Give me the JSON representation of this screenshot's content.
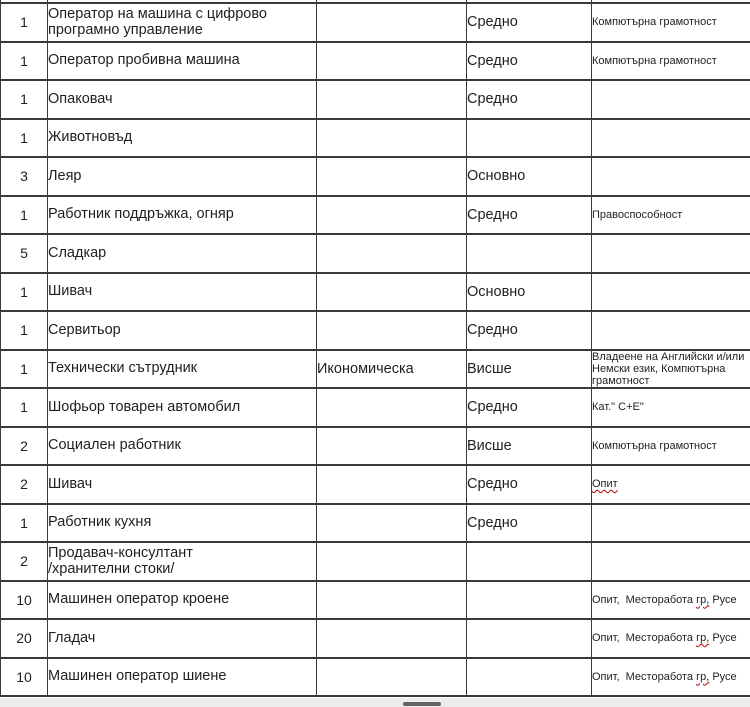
{
  "document": {
    "background": "#ffffff",
    "border_color": "#3a3a3a",
    "text_color": "#1f1f1f",
    "spellcheck_underline_color": "#b40000",
    "footer_strip_color": "#ececec",
    "scroll_artifact_color": "#4c4c4c"
  },
  "table": {
    "columns": [
      "count",
      "position",
      "specialty",
      "education",
      "requirements"
    ],
    "rows": [
      {
        "count": "1",
        "position": "Оператор на машина с цифрово\nпрограмно управление",
        "specialty": "",
        "education": "Средно",
        "requirements": {
          "text": "Компютърна грамотност",
          "wavy": ""
        }
      },
      {
        "count": "1",
        "position": "Оператор пробивна машина",
        "specialty": "",
        "education": "Средно",
        "requirements": {
          "text": "Компютърна грамотност",
          "wavy": ""
        }
      },
      {
        "count": "1",
        "position": "Опаковач",
        "specialty": "",
        "education": "Средно",
        "requirements": {
          "text": "",
          "wavy": ""
        }
      },
      {
        "count": "1",
        "position": "Животновъд",
        "specialty": "",
        "education": "",
        "requirements": {
          "text": "",
          "wavy": ""
        }
      },
      {
        "count": "3",
        "position": "Леяр",
        "specialty": "",
        "education": "Основно",
        "requirements": {
          "text": "",
          "wavy": ""
        }
      },
      {
        "count": "1",
        "position": "Работник поддръжка, огняр",
        "specialty": "",
        "education": "Средно",
        "requirements": {
          "text": "Правоспособност",
          "wavy": ""
        }
      },
      {
        "count": "5",
        "position": "Сладкар",
        "specialty": "",
        "education": "",
        "requirements": {
          "text": "",
          "wavy": ""
        }
      },
      {
        "count": "1",
        "position": "Шивач",
        "specialty": "",
        "education": "Основно",
        "requirements": {
          "text": "",
          "wavy": ""
        }
      },
      {
        "count": "1",
        "position": "Сервитьор",
        "specialty": "",
        "education": "Средно",
        "requirements": {
          "text": "",
          "wavy": ""
        }
      },
      {
        "count": "1",
        "position": "Технически сътрудник",
        "specialty": "Икономическа",
        "education": "Висше",
        "requirements": {
          "text": "Владеене на Английски и/или\nНемски език, Компютърна\nграмотност",
          "wavy": ""
        }
      },
      {
        "count": "1",
        "position": "Шофьор товарен автомобил",
        "specialty": "",
        "education": "Средно",
        "requirements": {
          "text": "Кат.\" С+Е\"",
          "wavy": ""
        }
      },
      {
        "count": "2",
        "position": "Социален работник",
        "specialty": "",
        "education": "Висше",
        "requirements": {
          "text": "Компютърна грамотност",
          "wavy": ""
        }
      },
      {
        "count": "2",
        "position": "Шивач",
        "specialty": "",
        "education": "Средно",
        "requirements": {
          "text": "Опит",
          "wavy": "Опит"
        }
      },
      {
        "count": "1",
        "position": "Работник кухня",
        "specialty": "",
        "education": "Средно",
        "requirements": {
          "text": "",
          "wavy": ""
        }
      },
      {
        "count": "2",
        "position": "Продавач-консултант\n/хранителни стоки/",
        "specialty": "",
        "education": "",
        "requirements": {
          "text": "",
          "wavy": ""
        }
      },
      {
        "count": "10",
        "position": "Машинен оператор кроене",
        "specialty": "",
        "education": "",
        "requirements": {
          "text": "Опит,  Месторабота гр, Русе",
          "wavy": "гр,"
        }
      },
      {
        "count": "20",
        "position": "Гладач",
        "specialty": "",
        "education": "",
        "requirements": {
          "text": "Опит,  Месторабота гр, Русе",
          "wavy": "гр,"
        }
      },
      {
        "count": "10",
        "position": "Машинен оператор шиене",
        "specialty": "",
        "education": "",
        "requirements": {
          "text": "Опит,  Месторабота гр, Русе",
          "wavy": "гр,"
        }
      }
    ]
  }
}
